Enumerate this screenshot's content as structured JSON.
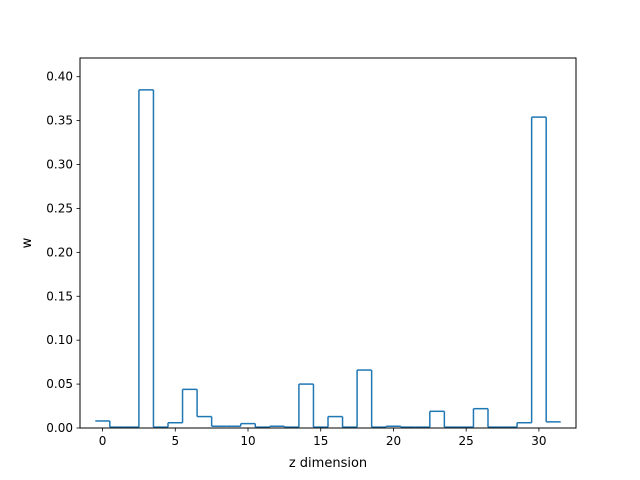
{
  "chart_data": {
    "type": "step",
    "title": "",
    "xlabel": "z dimension",
    "ylabel": "w",
    "xlim": [
      -1.55,
      32.55
    ],
    "ylim": [
      0,
      0.4213
    ],
    "xticks": [
      0,
      5,
      10,
      15,
      20,
      25,
      30
    ],
    "yticks": [
      0.0,
      0.05,
      0.1,
      0.15,
      0.2,
      0.25,
      0.3,
      0.35,
      0.4
    ],
    "ytick_labels": [
      "0.00",
      "0.05",
      "0.10",
      "0.15",
      "0.20",
      "0.25",
      "0.30",
      "0.35",
      "0.40"
    ],
    "grid": false,
    "series": [
      {
        "color": "#1f77b4",
        "x": [
          0,
          1,
          2,
          3,
          4,
          5,
          6,
          7,
          8,
          9,
          10,
          11,
          12,
          13,
          14,
          15,
          16,
          17,
          18,
          19,
          20,
          21,
          22,
          23,
          24,
          25,
          26,
          27,
          28,
          29,
          30,
          31
        ],
        "values": [
          0.008,
          0.001,
          0.001,
          0.385,
          0.001,
          0.006,
          0.044,
          0.013,
          0.002,
          0.002,
          0.005,
          0.001,
          0.002,
          0.001,
          0.05,
          0.001,
          0.013,
          0.001,
          0.066,
          0.001,
          0.002,
          0.001,
          0.001,
          0.019,
          0.001,
          0.001,
          0.022,
          0.001,
          0.001,
          0.006,
          0.354,
          0.007
        ]
      }
    ]
  }
}
